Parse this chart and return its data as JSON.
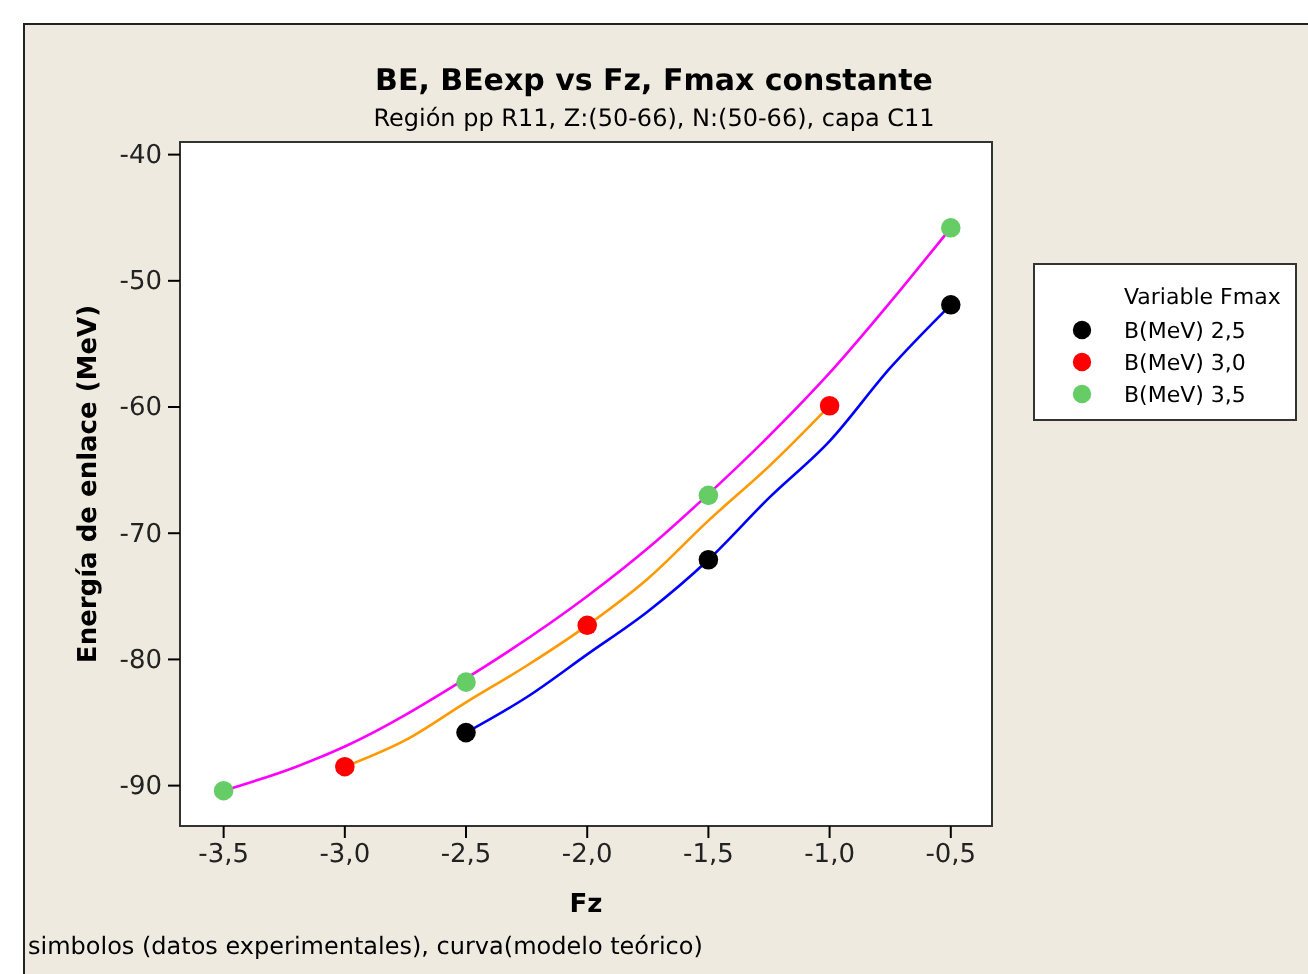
{
  "chart_data": {
    "type": "scatter",
    "title": "BE, BEexp vs Fz, Fmax constante",
    "subtitle": "Región pp R11, Z:(50-66), N:(50-66), capa C11",
    "xlabel": "Fz",
    "ylabel": "Energía de enlace (MeV)",
    "legend_title": "Variable Fmax",
    "annotations": [
      "simbolos (datos experimentales), curva(modelo teórico)"
    ],
    "xlim": [
      -3.68,
      -0.33
    ],
    "ylim": [
      -93.2,
      -39
    ],
    "xticks": [
      {
        "value": -3.5,
        "label": "-3,5"
      },
      {
        "value": -3,
        "label": "-3,0"
      },
      {
        "value": -2.5,
        "label": "-2,5"
      },
      {
        "value": -2,
        "label": "-2,0"
      },
      {
        "value": -1.5,
        "label": "-1,5"
      },
      {
        "value": -1,
        "label": "-1,0"
      },
      {
        "value": -0.5,
        "label": "-0,5"
      }
    ],
    "yticks": [
      -90,
      -80,
      -70,
      -60,
      -50,
      -40
    ],
    "grid": false,
    "legend": "right",
    "marker": "circle",
    "series": [
      {
        "type": "line",
        "color": "#0000ff",
        "marker": "none",
        "x": [
          -2.5,
          -2.25,
          -2,
          -1.75,
          -1.5,
          -1.25,
          -1,
          -0.75,
          -0.5
        ],
        "values": [
          -85.8,
          -83,
          -79.6,
          -76.2,
          -72.1,
          -67.2,
          -62.7,
          -56.9,
          -51.9
        ]
      },
      {
        "type": "line",
        "color": "#ff9900",
        "marker": "none",
        "x": [
          -3,
          -2.75,
          -2.5,
          -2.25,
          -2,
          -1.75,
          -1.5,
          -1.25,
          -1
        ],
        "values": [
          -88.5,
          -86.4,
          -83.4,
          -80.5,
          -77.3,
          -73.6,
          -69,
          -64.7,
          -59.9
        ]
      },
      {
        "type": "line",
        "color": "#ff00ff",
        "marker": "none",
        "x": [
          -3.5,
          -3.2,
          -3,
          -2.5,
          -2,
          -1.75,
          -1.5,
          -1.25,
          -1,
          -0.75,
          -0.5
        ],
        "values": [
          -90.4,
          -88.5,
          -86.9,
          -81.5,
          -75,
          -71.2,
          -66.9,
          -62.3,
          -57.3,
          -51.7,
          -45.8
        ]
      },
      {
        "name": "B(MeV) 2,5",
        "color": "#000000",
        "x": [
          -2.5,
          -1.5,
          -0.5
        ],
        "values": [
          -85.8,
          -72.1,
          -51.9
        ]
      },
      {
        "name": "B(MeV) 3,0",
        "color": "#ff0000",
        "x": [
          -3,
          -2,
          -1
        ],
        "values": [
          -88.5,
          -77.3,
          -59.9
        ]
      },
      {
        "name": "B(MeV) 3,5",
        "color": "#66cc66",
        "x": [
          -3.5,
          -2.5,
          -1.5,
          -0.5
        ],
        "values": [
          -90.4,
          -81.8,
          -67,
          -45.8
        ]
      }
    ]
  }
}
